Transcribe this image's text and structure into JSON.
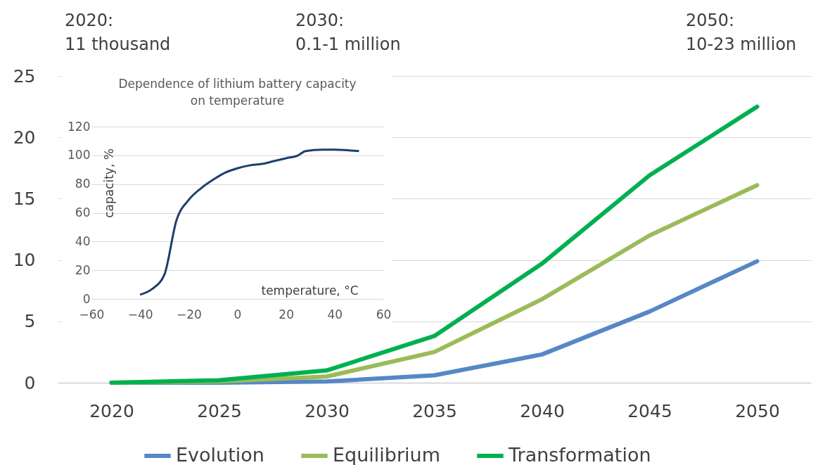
{
  "chart_data": [
    {
      "type": "line",
      "categories": [
        "2020",
        "2025",
        "2030",
        "2035",
        "2040",
        "2045",
        "2050"
      ],
      "series": [
        {
          "name": "Evolution",
          "color": "#5687c6",
          "values": [
            0,
            0,
            0.1,
            0.6,
            2.3,
            5.8,
            9.9
          ]
        },
        {
          "name": "Equilibrium",
          "color": "#9bbb59",
          "values": [
            0,
            0.1,
            0.5,
            2.5,
            6.8,
            12.0,
            16.1
          ]
        },
        {
          "name": "Transformation",
          "color": "#00b050",
          "values": [
            0,
            0.2,
            1.0,
            3.8,
            9.7,
            16.9,
            22.5
          ]
        }
      ],
      "ylim": [
        0,
        25
      ],
      "yticks": [
        0,
        5,
        10,
        15,
        20,
        25
      ],
      "grid": "y",
      "legend": "bottom",
      "annotations": [
        "2020:\n11 thousand",
        "2030:\n0.1-1 million",
        "2050:\n10-23 million"
      ]
    },
    {
      "type": "line",
      "title": "Dependence of lithium battery capacity\non temperature",
      "xlabel": "temperature, °C",
      "ylabel": "capacity, %",
      "x": [
        -40,
        -35,
        -30,
        -25,
        -20,
        -15,
        -10,
        -5,
        0,
        5,
        10,
        15,
        20,
        25,
        28,
        35,
        40,
        50
      ],
      "series": [
        {
          "color": "#1f3d6e",
          "values": [
            3,
            7,
            17,
            55,
            69,
            77,
            83,
            88,
            91,
            93,
            94,
            96,
            98,
            100,
            103,
            104,
            104,
            103
          ]
        }
      ],
      "xlim": [
        -60,
        60
      ],
      "xticks": [
        -60,
        -40,
        -20,
        0,
        20,
        40,
        60
      ],
      "ylim": [
        0,
        120
      ],
      "yticks": [
        0,
        20,
        40,
        60,
        80,
        100,
        120
      ],
      "grid": "y"
    }
  ]
}
